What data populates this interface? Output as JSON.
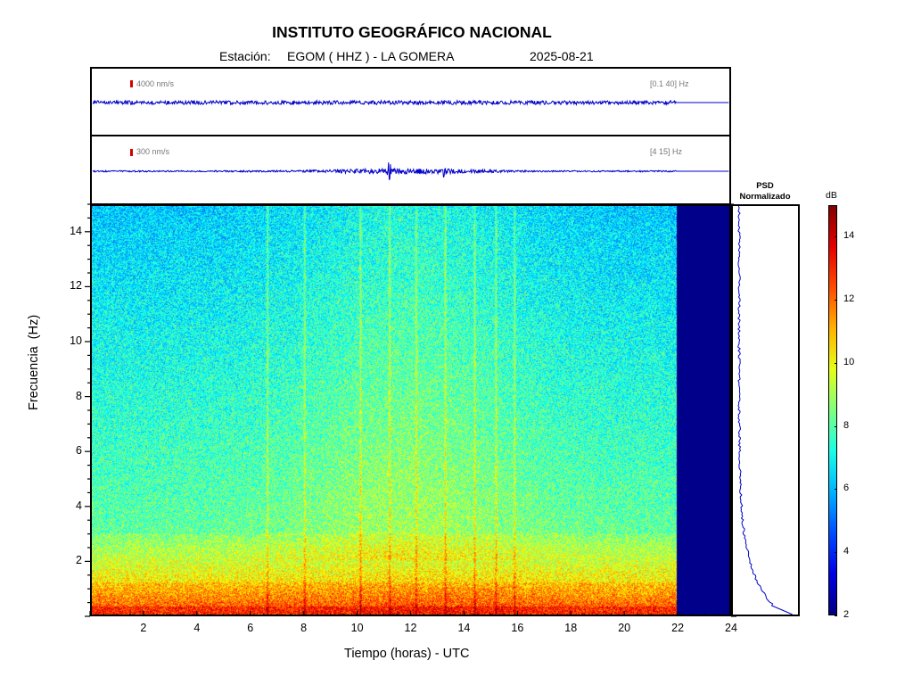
{
  "header": {
    "title": "INSTITUTO GEOGRÁFICO NACIONAL",
    "station_label": "Estación:",
    "station": "EGOM ( HHZ ) - LA GOMERA",
    "date": "2025-08-21"
  },
  "traces": [
    {
      "scale": "4000 nm/s",
      "band": "[0.1 40] Hz"
    },
    {
      "scale": "300 nm/s",
      "band": "[4 15] Hz"
    }
  ],
  "psd": {
    "title_line1": "PSD",
    "title_line2": "Normalizado"
  },
  "colorbar": {
    "unit": "dB",
    "ticks": [
      "2",
      "4",
      "6",
      "8",
      "10",
      "12",
      "14"
    ]
  },
  "chart_data": {
    "type": "heatmap",
    "title": "INSTITUTO GEOGRÁFICO NACIONAL",
    "xlabel": "Tiempo (horas) - UTC",
    "ylabel": "Frecuencia  (Hz)",
    "xlim": [
      0,
      24
    ],
    "ylim": [
      0,
      15
    ],
    "xticks": [
      "2",
      "4",
      "6",
      "8",
      "10",
      "12",
      "14",
      "16",
      "18",
      "20",
      "22",
      "24"
    ],
    "yticks": [
      "2",
      "4",
      "6",
      "8",
      "10",
      "12",
      "14"
    ],
    "clim": [
      2,
      15
    ],
    "data_end_hour": 22,
    "colormap": "jet",
    "colors": {
      "no_data": "#00008b",
      "trace": "#0000c8",
      "scale_mark": "#d40000"
    }
  }
}
